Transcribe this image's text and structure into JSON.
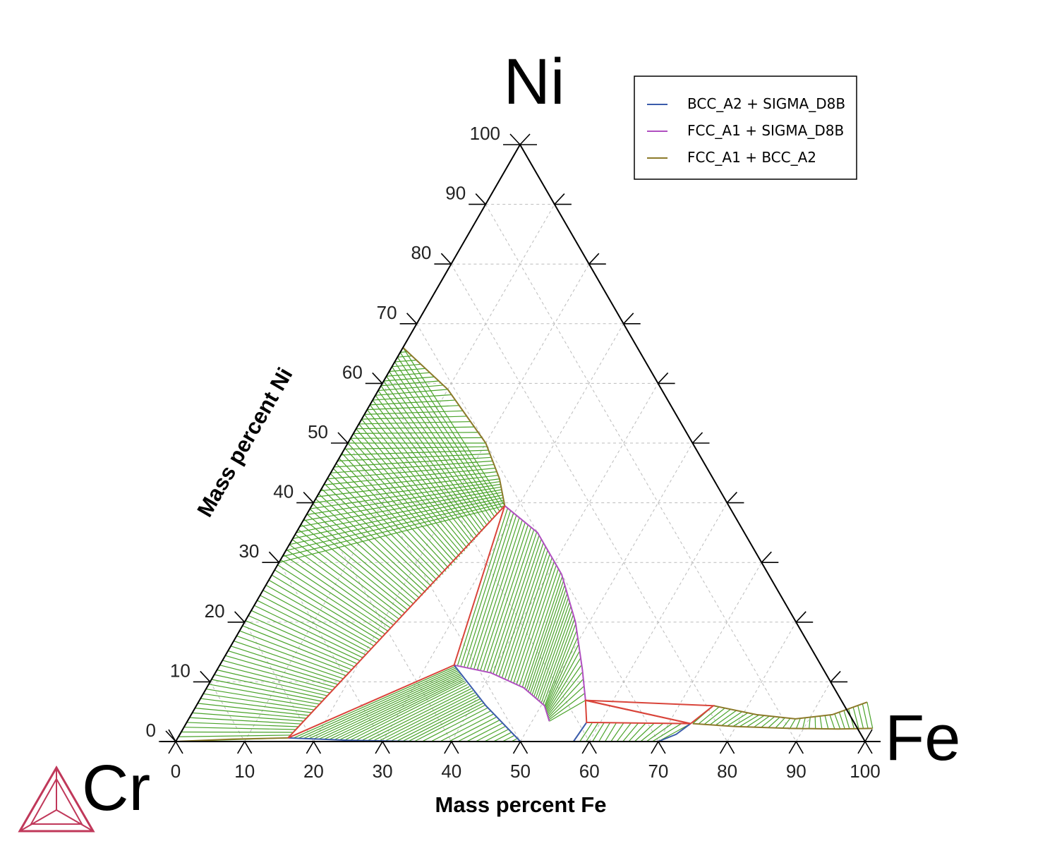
{
  "chart_data": {
    "type": "ternary",
    "corners": {
      "top": "Ni",
      "left": "Cr",
      "right": "Fe"
    },
    "bottom_axis_title": "Mass percent Fe",
    "left_axis_title": "Mass percent Ni",
    "bottom_ticks": [
      "0",
      "10",
      "20",
      "30",
      "40",
      "50",
      "60",
      "70",
      "80",
      "90",
      "100"
    ],
    "left_ticks": [
      "0",
      "10",
      "20",
      "30",
      "40",
      "50",
      "60",
      "70",
      "80",
      "90",
      "100"
    ],
    "grid": true,
    "legend_position": "top-right",
    "legend": [
      {
        "label": "BCC_A2 + SIGMA_D8B",
        "color": "#3b5cab"
      },
      {
        "label": "FCC_A1 + SIGMA_D8B",
        "color": "#b04fc0"
      },
      {
        "label": "FCC_A1 + BCC_A2",
        "color": "#8c7a2a"
      }
    ],
    "colors": {
      "tie_lines": "#4aa32a",
      "three_phase": "#d9443a",
      "axes": "#000000",
      "grid": "#bbbbbb"
    },
    "boundaries": [
      {
        "phase": "FCC_A1 + BCC_A2",
        "color": "#8c7a2a",
        "points_fe_ni": [
          [
            0,
            66
          ],
          [
            10,
            59
          ],
          [
            20,
            50
          ],
          [
            25,
            44
          ],
          [
            28,
            39.5
          ]
        ]
      },
      {
        "phase": "FCC_A1 + BCC_A2",
        "color": "#8c7a2a",
        "points_fe_ni": [
          [
            0,
            0
          ],
          [
            8,
            0.4
          ],
          [
            16,
            0.6
          ]
        ]
      },
      {
        "phase": "FCC_A1 + SIGMA_D8B",
        "color": "#b04fc0",
        "points_fe_ni": [
          [
            28,
            39.5
          ],
          [
            35,
            35
          ],
          [
            42,
            28
          ],
          [
            48,
            20
          ],
          [
            53,
            12
          ],
          [
            56,
            6.9
          ]
        ]
      },
      {
        "phase": "FCC_A1 + SIGMA_D8B",
        "color": "#b04fc0",
        "points_fe_ni": [
          [
            34,
            12.8
          ],
          [
            40,
            11.5
          ],
          [
            46,
            9
          ],
          [
            50.5,
            6
          ],
          [
            52.5,
            3.4
          ]
        ]
      },
      {
        "phase": "BCC_A2 + SIGMA_D8B",
        "color": "#3b5cab",
        "points_fe_ni": [
          [
            34,
            12.8
          ],
          [
            42,
            6
          ],
          [
            50,
            0
          ]
        ]
      },
      {
        "phase": "BCC_A2 + SIGMA_D8B",
        "color": "#3b5cab",
        "points_fe_ni": [
          [
            16,
            0.6
          ],
          [
            25,
            0.2
          ],
          [
            35,
            0
          ],
          [
            50,
            0
          ]
        ]
      },
      {
        "phase": "BCC_A2 + SIGMA_D8B",
        "color": "#3b5cab",
        "points_fe_ni": [
          [
            58,
            3.2
          ],
          [
            57.8,
            1
          ],
          [
            57.7,
            0
          ]
        ]
      },
      {
        "phase": "BCC_A2 + SIGMA_D8B",
        "color": "#3b5cab",
        "points_fe_ni": [
          [
            70,
            0
          ],
          [
            72,
            1.2
          ],
          [
            73.2,
            3
          ]
        ]
      },
      {
        "phase": "FCC_A1 + BCC_A2",
        "color": "#8c7a2a",
        "points_fe_ni": [
          [
            73.5,
            3
          ],
          [
            80,
            2.5
          ],
          [
            88,
            2.2
          ],
          [
            95,
            2.1
          ],
          [
            100,
            2.2
          ]
        ]
      },
      {
        "phase": "FCC_A1 + BCC_A2",
        "color": "#8c7a2a",
        "points_fe_ni": [
          [
            75,
            6
          ],
          [
            82,
            4.5
          ],
          [
            88,
            3.8
          ],
          [
            93,
            4.5
          ],
          [
            97,
            6.6
          ]
        ]
      }
    ],
    "three_phase_triangles_fe_ni": [
      [
        [
          16,
          0.6
        ],
        [
          28,
          39.5
        ],
        [
          34,
          12.8
        ]
      ],
      [
        [
          56,
          6.9
        ],
        [
          58,
          3.2
        ],
        [
          73.2,
          3
        ]
      ],
      [
        [
          56,
          6.9
        ],
        [
          73.2,
          3
        ],
        [
          75,
          6
        ]
      ]
    ],
    "tie_line_regions": [
      {
        "name": "FCC_A1 + BCC_A2 (Cr-Ni)",
        "lines": 80
      },
      {
        "name": "BCC_A2 + SIGMA_D8B",
        "lines": 35
      },
      {
        "name": "FCC_A1 + SIGMA_D8B",
        "lines": 45
      },
      {
        "name": "FCC_A1 + BCC_A2 (Fe-rich)",
        "lines": 30
      }
    ]
  }
}
